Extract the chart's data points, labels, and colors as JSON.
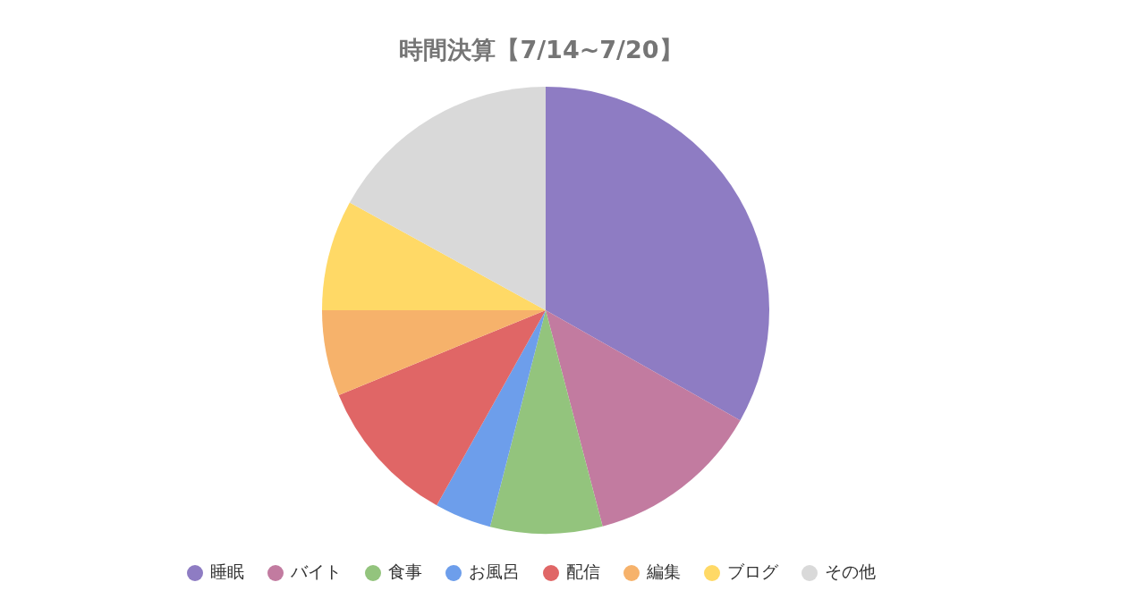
{
  "chart_data": {
    "type": "pie",
    "title": "時間決算【7/14~7/20】",
    "categories": [
      "睡眠",
      "バイト",
      "食事",
      "お風呂",
      "配信",
      "編集",
      "ブログ",
      "その他"
    ],
    "values": [
      33.2,
      12.7,
      8.1,
      4.1,
      10.7,
      6.2,
      8.0,
      17.0
    ],
    "colors": [
      "#8e7cc3",
      "#c27ba0",
      "#93c47d",
      "#6d9eeb",
      "#e06666",
      "#f6b26b",
      "#ffd966",
      "#d9d9d9"
    ],
    "legend": "bottom"
  }
}
